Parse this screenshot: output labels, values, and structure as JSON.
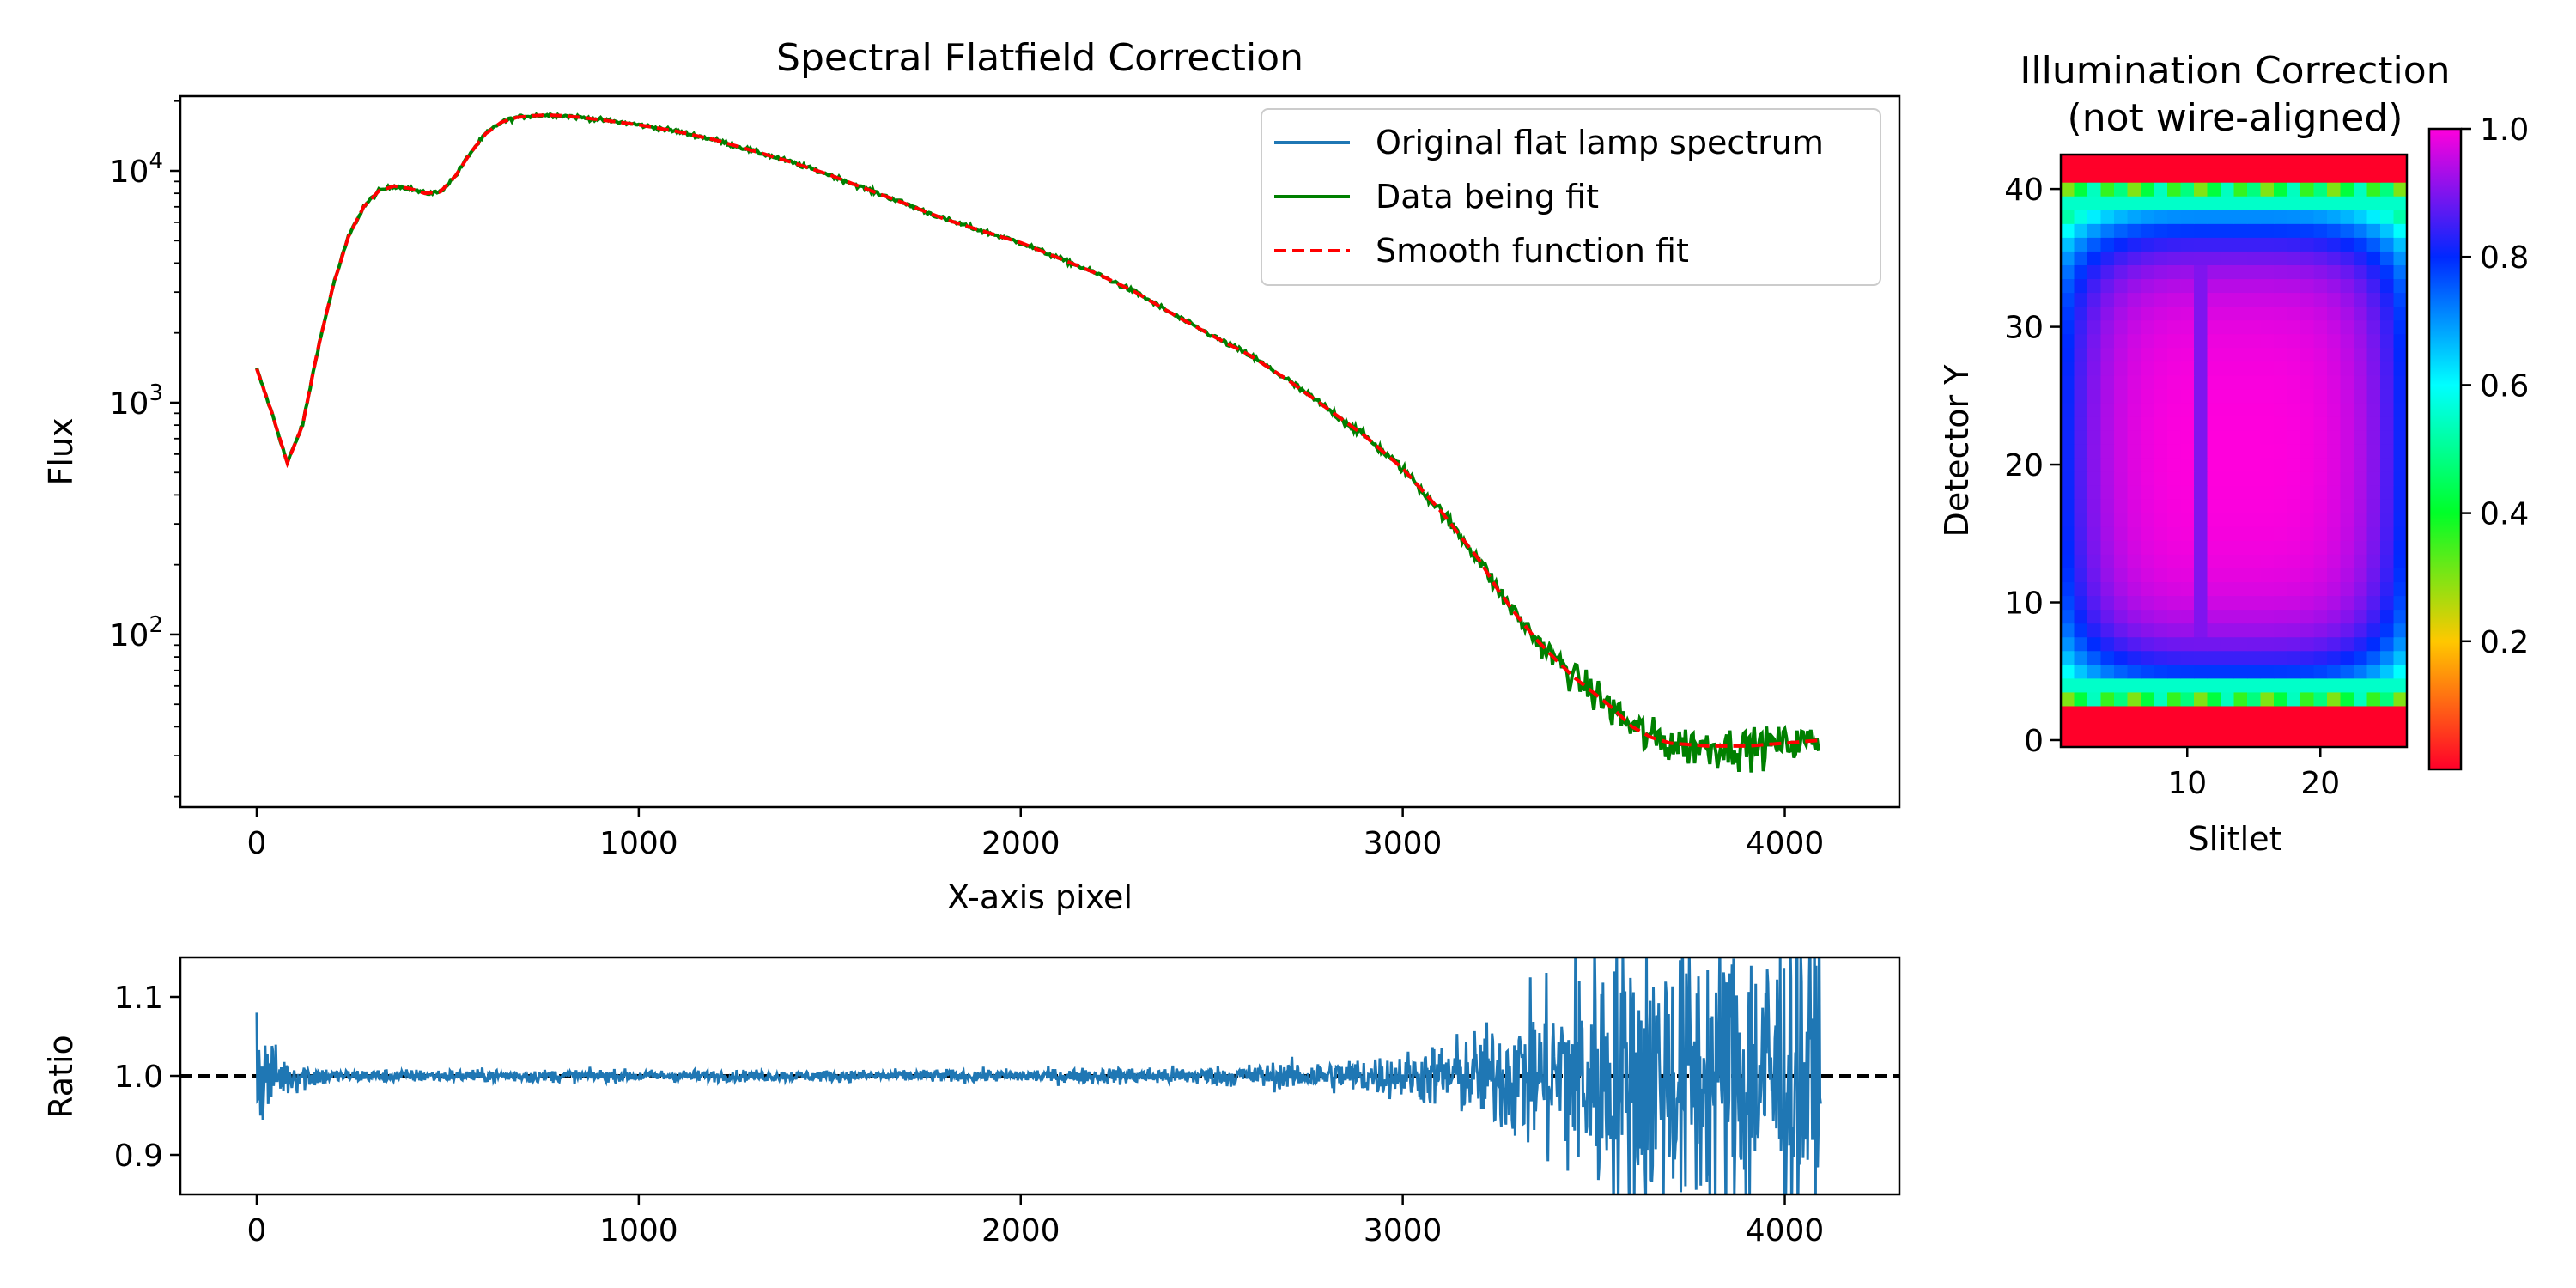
{
  "chart_data": [
    {
      "id": "spectrum",
      "type": "line",
      "title": "Spectral Flatfield Correction",
      "xlabel": "X-axis pixel",
      "ylabel": "Flux",
      "xlim": [
        -200,
        4300
      ],
      "ylim": [
        18,
        21000
      ],
      "yscale": "log",
      "grid": false,
      "legend_position": "top-right",
      "xticks": [
        0,
        1000,
        2000,
        3000,
        4000
      ],
      "yticks": [
        {
          "value": 100,
          "base": "10",
          "exp": "2"
        },
        {
          "value": 1000,
          "base": "10",
          "exp": "3"
        },
        {
          "value": 10000,
          "base": "10",
          "exp": "4"
        }
      ],
      "trend": {
        "x": [
          0,
          40,
          80,
          120,
          160,
          200,
          240,
          280,
          320,
          360,
          400,
          440,
          480,
          520,
          560,
          600,
          640,
          680,
          720,
          760,
          800,
          850,
          900,
          1000,
          1100,
          1200,
          1300,
          1400,
          1500,
          1600,
          1700,
          1800,
          1900,
          2000,
          2100,
          2200,
          2300,
          2400,
          2500,
          2600,
          2700,
          2800,
          2900,
          3000,
          3100,
          3200,
          3250,
          3300,
          3350,
          3400,
          3450,
          3500,
          3550,
          3600,
          3650,
          3700,
          3800,
          3900,
          4000,
          4095
        ],
        "y": [
          1400,
          900,
          550,
          800,
          1700,
          3200,
          5200,
          7000,
          8200,
          8600,
          8400,
          8000,
          8100,
          9500,
          12000,
          14500,
          16200,
          17000,
          17300,
          17400,
          17300,
          17000,
          16600,
          15800,
          14800,
          13600,
          12200,
          10900,
          9600,
          8300,
          7200,
          6200,
          5500,
          4900,
          4200,
          3600,
          3000,
          2400,
          1950,
          1600,
          1250,
          950,
          720,
          520,
          340,
          210,
          155,
          120,
          95,
          78,
          65,
          56,
          48,
          40,
          36,
          34,
          33,
          33,
          34,
          35
        ]
      },
      "noise_profile": {
        "x": [
          0,
          2500,
          3000,
          3200,
          3400,
          3600,
          4095
        ],
        "amplitude": [
          0.012,
          0.015,
          0.03,
          0.05,
          0.09,
          0.15,
          0.12
        ]
      },
      "series": [
        {
          "name": "Original flat lamp spectrum",
          "color": "#1f77b4",
          "style": "solid"
        },
        {
          "name": "Data being fit",
          "color": "#008000",
          "style": "solid"
        },
        {
          "name": "Smooth function fit",
          "color": "#ff0000",
          "style": "dashed"
        }
      ]
    },
    {
      "id": "ratio",
      "type": "line",
      "ylabel": "Ratio",
      "xlim": [
        -200,
        4300
      ],
      "ylim": [
        0.85,
        1.15
      ],
      "xticks": [
        0,
        1000,
        2000,
        3000,
        4000
      ],
      "yticks": [
        0.9,
        1.0,
        1.1
      ],
      "reference_line": {
        "y": 1.0,
        "color": "#000000",
        "style": "dashed"
      },
      "series_color": "#1f77b4",
      "x_end": 4095,
      "noise_profile": {
        "x": [
          0,
          60,
          200,
          1500,
          2000,
          2500,
          2800,
          3000,
          3200,
          3350,
          3500,
          4095
        ],
        "amplitude": [
          0.05,
          0.02,
          0.006,
          0.005,
          0.006,
          0.009,
          0.014,
          0.02,
          0.04,
          0.07,
          0.12,
          0.14
        ]
      },
      "spike_start": 1.08
    },
    {
      "id": "illumination",
      "type": "heatmap",
      "title_lines": [
        "Illumination Correction",
        "(not wire-aligned)"
      ],
      "xlabel": "Slitlet",
      "ylabel": "Detector Y",
      "columns": 26,
      "rows": 43,
      "xlim": [
        0.5,
        26.5
      ],
      "ylim": [
        -0.5,
        42.5
      ],
      "xticks": [
        10,
        20
      ],
      "yticks": [
        0,
        10,
        20,
        30,
        40
      ],
      "colormap": "gist_rainbow",
      "colorbar": {
        "ticks": [
          0.2,
          0.4,
          0.6,
          0.8,
          1.0
        ],
        "tick_labels": [
          "0.2",
          "0.4",
          "0.6",
          "0.8",
          "1.0"
        ],
        "range": [
          0.0,
          1.0
        ]
      }
    }
  ]
}
